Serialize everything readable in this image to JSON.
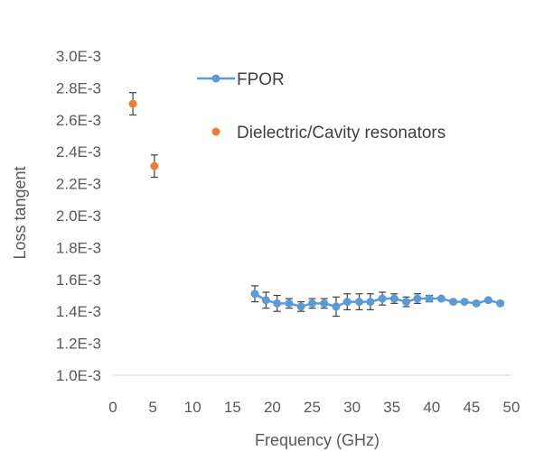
{
  "chart_data": {
    "type": "scatter",
    "xlabel": "Frequency (GHz)",
    "ylabel": "Loss tangent",
    "xlim": [
      0,
      50
    ],
    "ylim": [
      0.001,
      0.003
    ],
    "x_ticks": [
      "0",
      "5",
      "10",
      "15",
      "20",
      "25",
      "30",
      "35",
      "40",
      "45",
      "50"
    ],
    "y_ticks": [
      "1.0E-3",
      "1.2E-3",
      "1.4E-3",
      "1.6E-3",
      "1.8E-3",
      "2.0E-3",
      "2.2E-3",
      "2.4E-3",
      "2.6E-3",
      "2.8E-3",
      "3.0E-3"
    ],
    "grid": false,
    "legend_position": "top-right",
    "series": [
      {
        "name": "FPOR",
        "style": "line-markers",
        "color": "#5b9bd5",
        "x": [
          17.8,
          19.2,
          20.6,
          22.1,
          23.6,
          25.0,
          26.5,
          28.0,
          29.4,
          30.9,
          32.3,
          33.8,
          35.3,
          36.8,
          38.2,
          39.7,
          41.2,
          42.7,
          44.1,
          45.6,
          47.1,
          48.6
        ],
        "y": [
          0.00151,
          0.00147,
          0.00145,
          0.00145,
          0.00143,
          0.00145,
          0.00145,
          0.00143,
          0.00146,
          0.00146,
          0.00146,
          0.00148,
          0.00148,
          0.00146,
          0.00148,
          0.00148,
          0.00148,
          0.00146,
          0.00146,
          0.00145,
          0.00147,
          0.00145
        ],
        "err": [
          5e-05,
          5e-05,
          5e-05,
          3e-05,
          3e-05,
          3e-05,
          3e-05,
          6e-05,
          5e-05,
          5e-05,
          5e-05,
          4e-05,
          3e-05,
          3e-05,
          3e-05,
          2e-05,
          1e-05,
          1e-05,
          1e-05,
          1e-05,
          1e-05,
          1e-05
        ]
      },
      {
        "name": "Dielectric/Cavity resonators",
        "style": "markers",
        "color": "#ed7d31",
        "x": [
          2.5,
          5.2
        ],
        "y": [
          0.0027,
          0.00231
        ],
        "err": [
          7e-05,
          7e-05
        ]
      }
    ]
  }
}
